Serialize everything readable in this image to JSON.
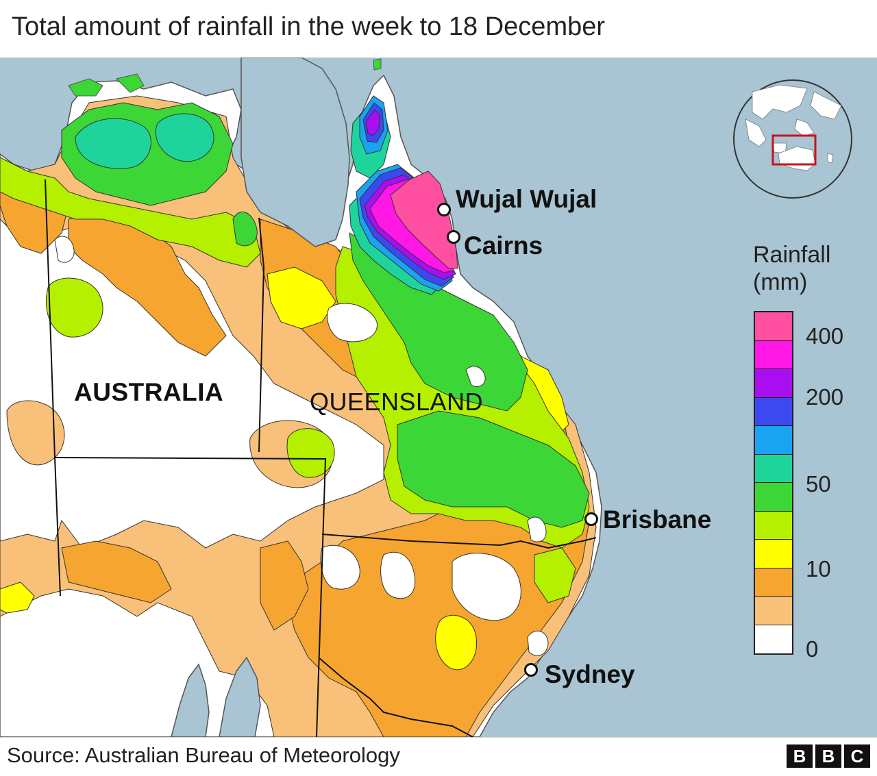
{
  "title": "Total amount of rainfall in the week to 18 December",
  "source": "Source: Australian Bureau of Meteorology",
  "logo": [
    "B",
    "B",
    "C"
  ],
  "map": {
    "region_label": "AUSTRALIA",
    "state_label": "QUEENSLAND",
    "cities": [
      {
        "name": "Wujal Wujal"
      },
      {
        "name": "Cairns"
      },
      {
        "name": "Brisbane"
      },
      {
        "name": "Sydney"
      }
    ],
    "colors": {
      "sea": "#a9c4d2",
      "land_none": "#ffffff",
      "land_light": "#f8c078",
      "land_medium": "#f6a531",
      "yellow": "#ffff00",
      "lime": "#b4f000",
      "green": "#3cd636",
      "teal": "#1fd49b",
      "light_blue": "#1aa3f0",
      "blue": "#3d49f0",
      "purple": "#a80ef0",
      "magenta": "#ff17e6",
      "pink": "#ff4fa0",
      "inset_box": "#c4161c"
    }
  },
  "legend": {
    "title_line1": "Rainfall",
    "title_line2": "(mm)",
    "colors_top_to_bottom": [
      "#ff4fa0",
      "#ff17e6",
      "#a80ef0",
      "#3d49f0",
      "#1aa3f0",
      "#1fd49b",
      "#3cd636",
      "#b4f000",
      "#ffff00",
      "#f6a531",
      "#f8c078",
      "#ffffff"
    ],
    "ticks": [
      "400",
      "200",
      "50",
      "10",
      "0"
    ]
  }
}
